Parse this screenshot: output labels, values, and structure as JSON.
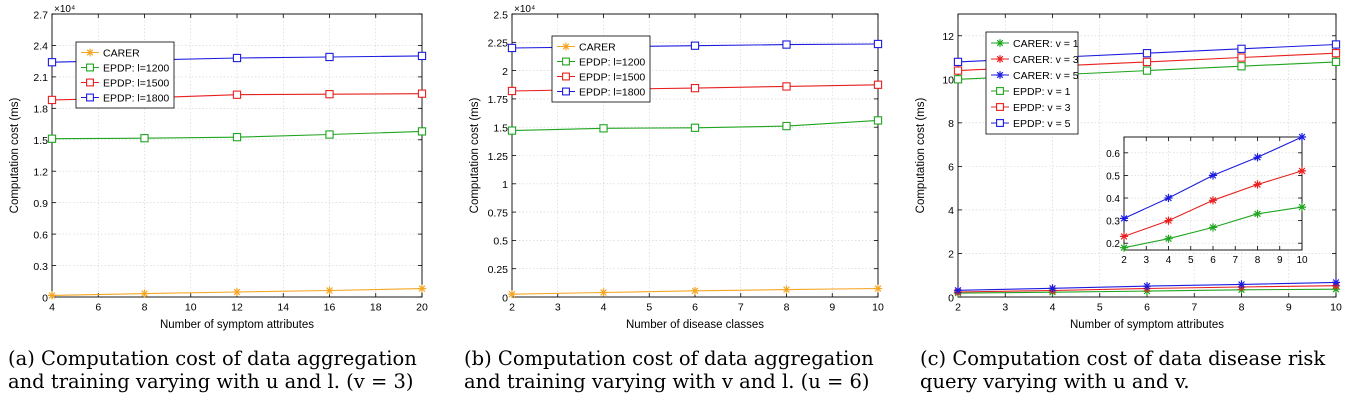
{
  "chart_data": [
    {
      "type": "line",
      "xlabel": "Number of symptom attributes",
      "ylabel": "Computation cost (ms)",
      "exponent_label": "×10⁴",
      "xlim": [
        4,
        20
      ],
      "ylim": [
        0,
        27000
      ],
      "xticks": [
        4,
        6,
        8,
        10,
        12,
        14,
        16,
        18,
        20
      ],
      "yticks": [
        0,
        3000,
        6000,
        9000,
        12000,
        15000,
        18000,
        21000,
        24000,
        27000
      ],
      "ytick_labels": [
        "0",
        "0.3",
        "0.6",
        "0.9",
        "1.2",
        "1.5",
        "1.8",
        "2.1",
        "2.4",
        "2.7"
      ],
      "grid": true,
      "legend_position": "upper-left",
      "x": [
        4,
        8,
        12,
        16,
        20
      ],
      "series": [
        {
          "name": "CARER",
          "color": "#f5a623",
          "marker": "star",
          "values": [
            150,
            320,
            480,
            620,
            800
          ]
        },
        {
          "name": "EPDP: l=1200",
          "color": "#1fa51f",
          "marker": "square",
          "values": [
            15100,
            15150,
            15250,
            15500,
            15800
          ]
        },
        {
          "name": "EPDP: l=1500",
          "color": "#e8201f",
          "marker": "square",
          "values": [
            18800,
            19000,
            19300,
            19350,
            19400
          ]
        },
        {
          "name": "EPDP: l=1800",
          "color": "#1c1ce0",
          "marker": "square",
          "values": [
            22400,
            22600,
            22800,
            22900,
            23000
          ]
        }
      ],
      "caption": "(a) Computation cost of data aggregation and training varying with u and l. (v = 3)"
    },
    {
      "type": "line",
      "xlabel": "Number of disease classes",
      "ylabel": "Computation cost (ms)",
      "exponent_label": "×10⁴",
      "xlim": [
        2,
        10
      ],
      "ylim": [
        0,
        25000
      ],
      "xticks": [
        2,
        3,
        4,
        5,
        6,
        7,
        8,
        9,
        10
      ],
      "yticks": [
        0,
        2500,
        5000,
        7500,
        10000,
        12500,
        15000,
        17500,
        20000,
        22500,
        25000
      ],
      "ytick_labels": [
        "0",
        "0.25",
        "0.5",
        "0.75",
        "1",
        "1.25",
        "1.5",
        "1.75",
        "2",
        "2.25",
        "2.5"
      ],
      "grid": true,
      "legend_position": "upper-left",
      "x": [
        2,
        4,
        6,
        8,
        10
      ],
      "series": [
        {
          "name": "CARER",
          "color": "#f5a623",
          "marker": "star",
          "values": [
            250,
            400,
            550,
            650,
            750
          ]
        },
        {
          "name": "EPDP: l=1200",
          "color": "#1fa51f",
          "marker": "square",
          "values": [
            14700,
            14900,
            14950,
            15100,
            15600
          ]
        },
        {
          "name": "EPDP: l=1500",
          "color": "#e8201f",
          "marker": "square",
          "values": [
            18200,
            18350,
            18450,
            18600,
            18750
          ]
        },
        {
          "name": "EPDP: l=1800",
          "color": "#1c1ce0",
          "marker": "square",
          "values": [
            22000,
            22100,
            22200,
            22300,
            22350
          ]
        }
      ],
      "caption": "(b) Computation cost of data aggregation and training varying with v and l. (u = 6)"
    },
    {
      "type": "line",
      "xlabel": "Number of symptom attributes",
      "ylabel": "Computation cost (ms)",
      "xlim": [
        2,
        10
      ],
      "ylim": [
        0,
        13
      ],
      "xticks": [
        2,
        3,
        4,
        5,
        6,
        7,
        8,
        9,
        10
      ],
      "yticks": [
        0,
        2,
        4,
        6,
        8,
        10,
        12
      ],
      "grid": true,
      "legend_position": "upper-left",
      "x": [
        2,
        4,
        6,
        8,
        10
      ],
      "series": [
        {
          "name": "CARER: v = 1",
          "color": "#1fa51f",
          "marker": "star",
          "values": [
            0.18,
            0.22,
            0.27,
            0.33,
            0.36
          ]
        },
        {
          "name": "CARER: v = 3",
          "color": "#e8201f",
          "marker": "star",
          "values": [
            0.23,
            0.3,
            0.39,
            0.46,
            0.52
          ]
        },
        {
          "name": "CARER: v = 5",
          "color": "#1c1ce0",
          "marker": "star",
          "values": [
            0.31,
            0.4,
            0.5,
            0.58,
            0.67
          ]
        },
        {
          "name": "EPDP: v = 1",
          "color": "#1fa51f",
          "marker": "square",
          "values": [
            10.0,
            10.2,
            10.4,
            10.6,
            10.8
          ]
        },
        {
          "name": "EPDP: v = 3",
          "color": "#e8201f",
          "marker": "square",
          "values": [
            10.4,
            10.6,
            10.8,
            11.0,
            11.2
          ]
        },
        {
          "name": "EPDP: v = 5",
          "color": "#1c1ce0",
          "marker": "square",
          "values": [
            10.8,
            11.0,
            11.2,
            11.4,
            11.6
          ]
        }
      ],
      "inset": {
        "xlim": [
          2,
          10
        ],
        "ylim": [
          0.17,
          0.67
        ],
        "xticks": [
          2,
          3,
          4,
          5,
          6,
          7,
          8,
          9,
          10
        ],
        "yticks": [
          0.2,
          0.3,
          0.4,
          0.5,
          0.6
        ],
        "series_indices": [
          0,
          1,
          2
        ]
      },
      "caption": "(c) Computation cost of data disease risk query varying with u and v."
    }
  ],
  "captions": [
    {
      "line1": "(a) Computation cost of data aggregation",
      "line2": "and training varying with u and l. (v = 3)"
    },
    {
      "line1": "(b) Computation cost of data aggregation",
      "line2": "and training varying with v and l. (u = 6)"
    },
    {
      "line1": "(c) Computation cost of data disease risk",
      "line2": "query varying with u and v."
    }
  ]
}
